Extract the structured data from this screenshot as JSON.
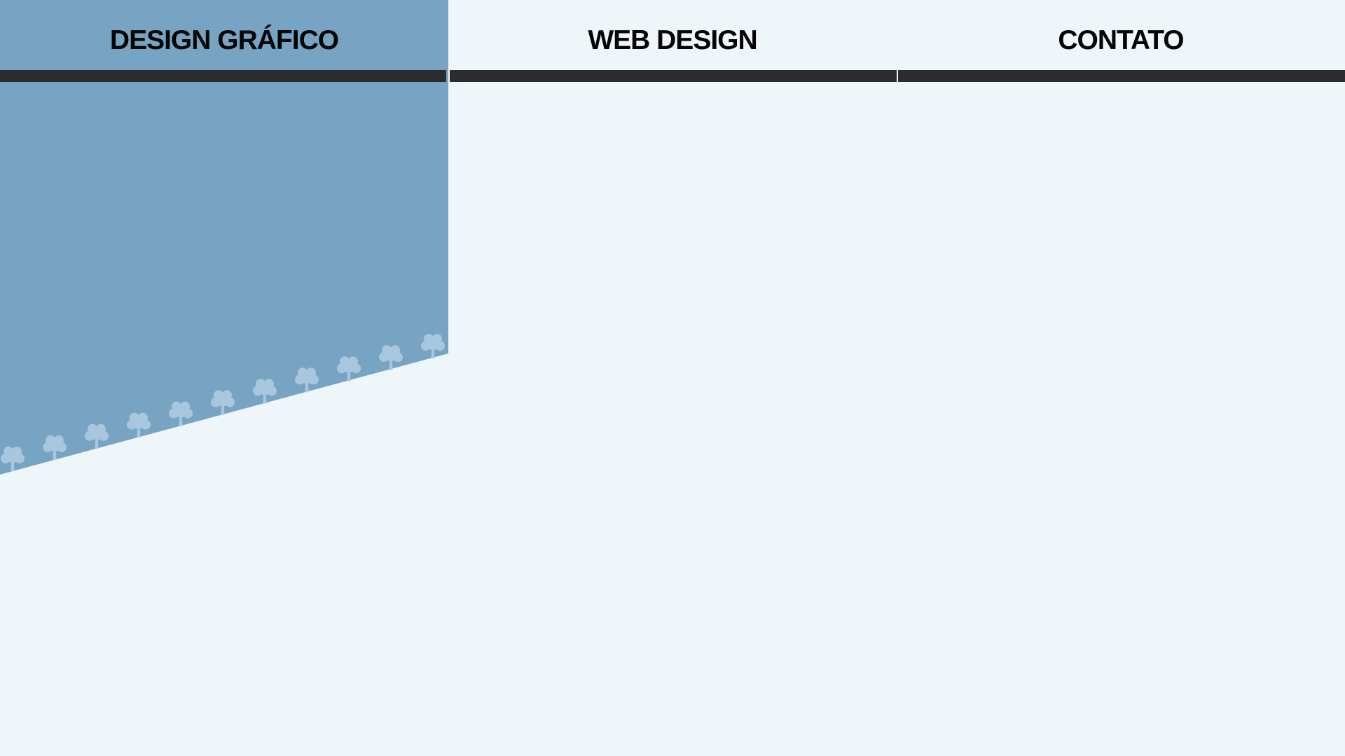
{
  "nav": {
    "items": [
      {
        "label": "DESIGN GRÁFICO",
        "active": true
      },
      {
        "label": "WEB DESIGN",
        "active": false
      },
      {
        "label": "CONTATO",
        "active": false
      }
    ]
  },
  "colors": {
    "background": "#eef6f9",
    "active_panel": "#78a4c4",
    "tree_silhouette": "#a9c6df",
    "nav_bar": "#2a2c2e",
    "nav_text": "#050505"
  },
  "decoration": {
    "icon": "tree-icon",
    "count": 11
  }
}
